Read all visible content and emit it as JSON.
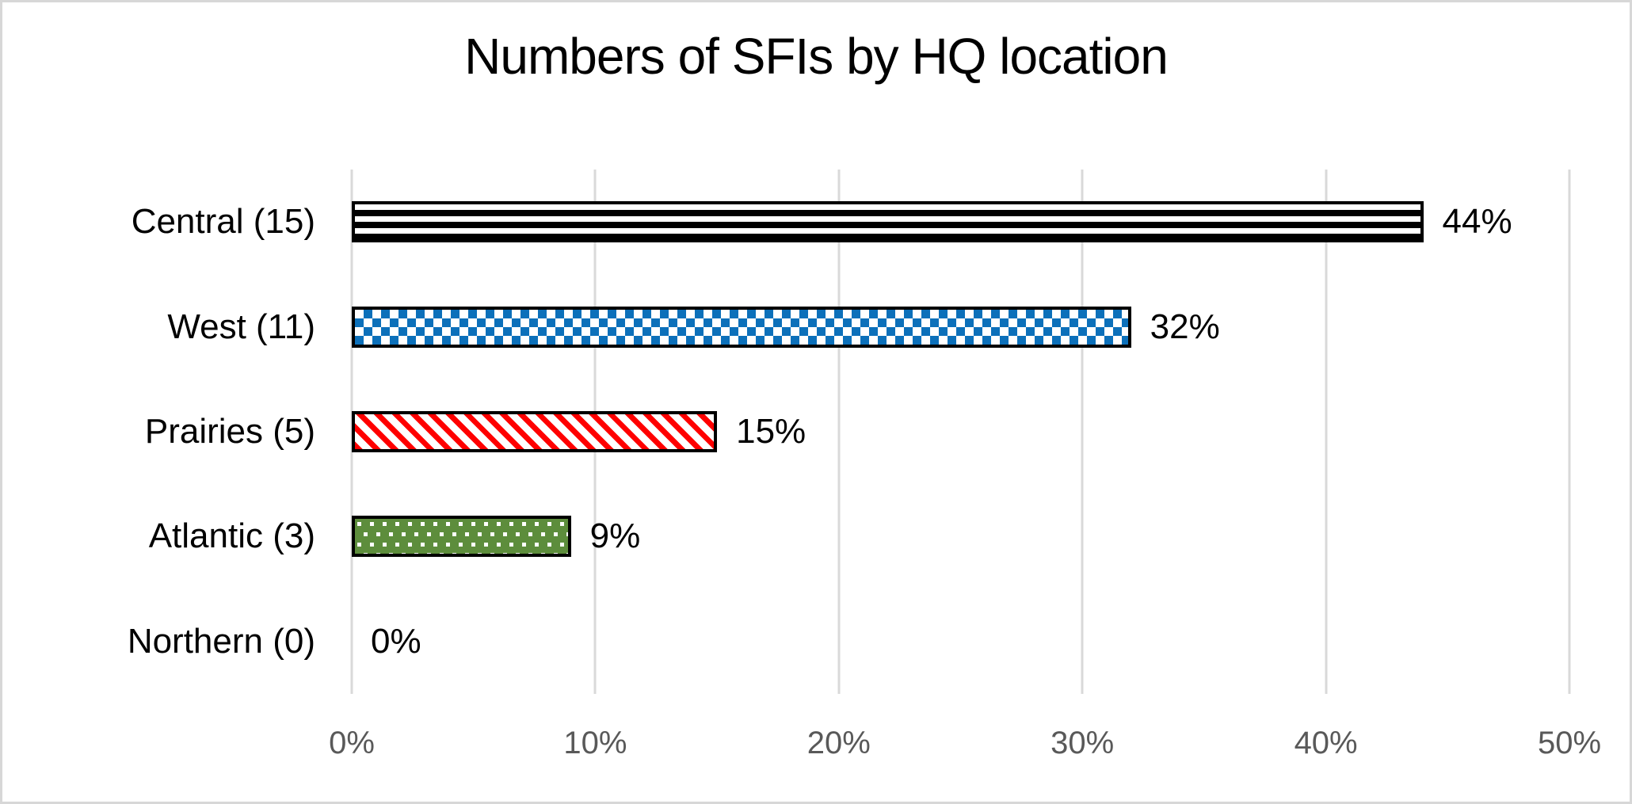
{
  "chart_data": {
    "type": "bar",
    "orientation": "horizontal",
    "title": "Numbers of SFIs by HQ location",
    "categories": [
      "Central (15)",
      "West (11)",
      "Prairies (5)",
      "Atlantic (3)",
      "Northern (0)"
    ],
    "values": [
      44,
      32,
      15,
      9,
      0
    ],
    "counts": [
      15,
      11,
      5,
      3,
      0
    ],
    "data_labels": [
      "44%",
      "32%",
      "15%",
      "9%",
      "0%"
    ],
    "x_ticks": [
      0,
      10,
      20,
      30,
      40,
      50
    ],
    "x_tick_labels": [
      "0%",
      "10%",
      "20%",
      "30%",
      "40%",
      "50%"
    ],
    "xlim": [
      0,
      50
    ],
    "grid": "vertical-gridlines-on",
    "legend": "none",
    "bar_styles": [
      {
        "pattern": "hstripes",
        "description": "black horizontal stripes",
        "color": "#000000"
      },
      {
        "pattern": "checker",
        "description": "blue-white checkerboard",
        "color": "#0C70BA"
      },
      {
        "pattern": "dstripes",
        "description": "red diagonal stripes",
        "color": "#FF0000"
      },
      {
        "pattern": "dots",
        "description": "green with white dots",
        "color": "#5D8D3C"
      },
      {
        "pattern": "none",
        "description": "no bar (zero value)",
        "color": null
      }
    ],
    "colors": {
      "gridline": "#D9D9D9",
      "axis_label": "#595959",
      "text": "#000000",
      "bar_border": "#000000",
      "frame_border": "#D7D7D7",
      "background": "#FFFFFF"
    }
  }
}
